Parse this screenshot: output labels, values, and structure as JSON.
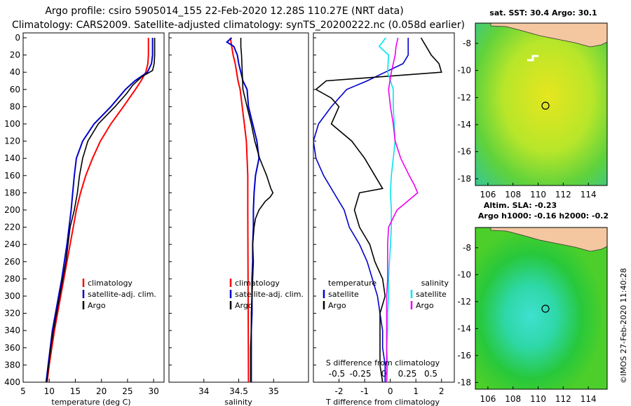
{
  "title_line1": "Argo profile: csiro 5905014_155 22-Feb-2020 12.28S 110.27E (NRT data)",
  "title_line2": "Climatology: CARS2009. Satellite-adjusted climatology: synTS_20200222.nc (0.058d earlier)",
  "credit": "©IMOS 27-Feb-2020 11:40:28",
  "colors": {
    "climatology": "#ff0000",
    "satellite": "#0000cc",
    "argo": "#000000",
    "cyan": "#00e5ee",
    "magenta": "#ee00ee",
    "land": "#f4c7a1"
  },
  "chart_data": [
    {
      "type": "line",
      "id": "temperature",
      "xlabel": "temperature (deg C)",
      "xlim": [
        5,
        32
      ],
      "ylim": [
        0,
        400
      ],
      "xticks": [
        "5",
        "10",
        "15",
        "20",
        "25",
        "30"
      ],
      "yticks": [
        "0",
        "20",
        "40",
        "60",
        "80",
        "100",
        "120",
        "140",
        "160",
        "180",
        "200",
        "220",
        "240",
        "260",
        "280",
        "300",
        "320",
        "340",
        "360",
        "380",
        "400"
      ],
      "legend": [
        "climatology",
        "satellite-adj. clim.",
        "Argo"
      ],
      "series": [
        {
          "name": "climatology",
          "color": "climatology",
          "depth": [
            0,
            10,
            20,
            30,
            40,
            50,
            60,
            80,
            100,
            120,
            140,
            160,
            180,
            200,
            220,
            240,
            260,
            280,
            300,
            320,
            340,
            360,
            380,
            400
          ],
          "values": [
            29.0,
            29.0,
            29.0,
            28.9,
            28.5,
            27.6,
            26.5,
            24.2,
            21.8,
            19.8,
            18.3,
            17.0,
            16.0,
            15.2,
            14.6,
            14.0,
            13.4,
            12.8,
            12.2,
            11.6,
            11.0,
            10.5,
            10.0,
            9.6
          ]
        },
        {
          "name": "satellite-adj. clim.",
          "color": "satellite",
          "depth": [
            0,
            10,
            20,
            30,
            40,
            50,
            60,
            80,
            100,
            120,
            140,
            160,
            180,
            200,
            220,
            240,
            260,
            280,
            300,
            320,
            340,
            360,
            380,
            400
          ],
          "values": [
            29.8,
            29.8,
            29.8,
            29.6,
            28.8,
            26.4,
            24.6,
            21.8,
            18.6,
            16.4,
            15.2,
            14.8,
            14.5,
            14.2,
            13.8,
            13.4,
            12.9,
            12.4,
            11.8,
            11.2,
            10.6,
            10.2,
            9.8,
            9.4
          ]
        },
        {
          "name": "Argo",
          "color": "argo",
          "depth": [
            0,
            10,
            20,
            30,
            38,
            45,
            55,
            65,
            80,
            100,
            120,
            140,
            160,
            180,
            200,
            220,
            240,
            260,
            280,
            300,
            320,
            340,
            360,
            380,
            400
          ],
          "values": [
            30.2,
            30.2,
            30.2,
            30.1,
            29.8,
            27.8,
            26.0,
            24.8,
            22.6,
            19.4,
            17.4,
            16.4,
            15.8,
            15.4,
            14.8,
            14.0,
            13.6,
            13.2,
            12.6,
            12.0,
            11.4,
            10.8,
            10.3,
            9.9,
            9.5
          ]
        }
      ]
    },
    {
      "type": "line",
      "id": "salinity",
      "xlabel": "salinity",
      "xlim": [
        33.5,
        35.5
      ],
      "ylim": [
        0,
        400
      ],
      "xticks": [
        "34",
        "34.5",
        "35"
      ],
      "legend": [
        "climatology",
        "satellite-adj. clim.",
        "Argo"
      ],
      "series": [
        {
          "name": "climatology",
          "color": "climatology",
          "depth": [
            0,
            10,
            20,
            30,
            40,
            50,
            60,
            80,
            100,
            120,
            140,
            160,
            180,
            200,
            400
          ],
          "values": [
            34.38,
            34.4,
            34.42,
            34.45,
            34.47,
            34.49,
            34.52,
            34.55,
            34.58,
            34.61,
            34.62,
            34.63,
            34.63,
            34.63,
            34.64
          ]
        },
        {
          "name": "satellite-adj. clim.",
          "color": "satellite",
          "depth": [
            0,
            5,
            10,
            20,
            30,
            40,
            50,
            60,
            80,
            100,
            120,
            140,
            160,
            180,
            200,
            220,
            240,
            260,
            280,
            300,
            320,
            340,
            360,
            380,
            400
          ],
          "values": [
            34.4,
            34.33,
            34.43,
            34.48,
            34.5,
            34.53,
            34.56,
            34.62,
            34.64,
            34.7,
            34.76,
            34.79,
            34.74,
            34.72,
            34.71,
            34.71,
            34.7,
            34.7,
            34.69,
            34.69,
            34.69,
            34.68,
            34.68,
            34.68,
            34.68
          ]
        },
        {
          "name": "Argo",
          "color": "argo",
          "depth": [
            0,
            10,
            20,
            40,
            60,
            80,
            100,
            120,
            140,
            150,
            160,
            170,
            175,
            180,
            185,
            190,
            200,
            210,
            220,
            240,
            260,
            280,
            300,
            320,
            340,
            360,
            380,
            400
          ],
          "values": [
            34.53,
            34.53,
            34.54,
            34.55,
            34.56,
            34.62,
            34.68,
            34.73,
            34.8,
            34.85,
            34.9,
            34.94,
            34.96,
            34.99,
            34.95,
            34.88,
            34.79,
            34.74,
            34.72,
            34.7,
            34.71,
            34.7,
            34.69,
            34.68,
            34.68,
            34.67,
            34.67,
            34.67
          ]
        }
      ]
    },
    {
      "type": "line",
      "id": "difference",
      "xlabel": "T difference from climatology",
      "xlabel_top": "S difference from climatology",
      "xlim": [
        -3,
        2.5
      ],
      "xlim_s": [
        -0.75,
        0.75
      ],
      "ylim": [
        0,
        400
      ],
      "xticks": [
        "-2",
        "-1",
        "0",
        "1",
        "2"
      ],
      "xticks_s": [
        "-0.5",
        "-0.25",
        "0",
        "0.25",
        "0.5"
      ],
      "legend_t": {
        "title": "temperature",
        "items": [
          "satellite",
          "Argo"
        ]
      },
      "legend_s": {
        "title": "salinity",
        "items": [
          "satellite",
          "Argo"
        ]
      },
      "series": [
        {
          "name": "temperature satellite",
          "axis": "T",
          "color": "satellite",
          "depth": [
            0,
            20,
            30,
            40,
            50,
            60,
            80,
            100,
            120,
            140,
            160,
            180,
            200,
            220,
            240,
            260,
            280,
            300,
            320,
            340,
            360,
            380,
            400
          ],
          "values": [
            0.7,
            0.7,
            0.5,
            -0.2,
            -0.9,
            -1.7,
            -2.3,
            -2.8,
            -3.0,
            -2.9,
            -2.6,
            -2.2,
            -1.8,
            -1.6,
            -1.2,
            -0.9,
            -0.7,
            -0.5,
            -0.4,
            -0.3,
            -0.3,
            -0.2,
            -0.2
          ]
        },
        {
          "name": "temperature Argo",
          "axis": "T",
          "color": "argo",
          "depth": [
            0,
            10,
            20,
            30,
            40,
            50,
            60,
            70,
            80,
            100,
            120,
            140,
            160,
            175,
            180,
            200,
            220,
            240,
            260,
            280,
            300,
            320,
            340,
            360,
            380,
            400
          ],
          "values": [
            1.2,
            1.4,
            1.6,
            1.9,
            2.0,
            -2.5,
            -2.9,
            -2.3,
            -2.0,
            -2.3,
            -1.5,
            -1.0,
            -0.6,
            -0.3,
            -1.2,
            -1.4,
            -1.2,
            -0.8,
            -0.6,
            -0.3,
            -0.2,
            -0.4,
            -0.4,
            -0.4,
            -0.4,
            -0.3
          ]
        },
        {
          "name": "salinity satellite",
          "axis": "S",
          "color": "cyan",
          "depth": [
            0,
            10,
            20,
            40,
            60,
            80,
            100,
            120,
            140,
            160,
            180,
            200,
            220,
            240,
            260,
            280,
            300,
            320,
            340,
            360,
            380,
            400
          ],
          "values": [
            0.02,
            -0.05,
            0.05,
            0.04,
            0.1,
            0.1,
            0.11,
            0.12,
            0.1,
            0.08,
            0.07,
            0.08,
            0.08,
            0.07,
            0.06,
            0.05,
            0.05,
            0.04,
            0.04,
            0.03,
            0.04,
            0.03
          ]
        },
        {
          "name": "salinity Argo",
          "axis": "S",
          "color": "magenta",
          "depth": [
            0,
            10,
            20,
            40,
            60,
            80,
            100,
            120,
            140,
            160,
            170,
            180,
            190,
            200,
            220,
            240,
            260,
            280,
            300,
            320,
            340,
            360,
            380,
            400
          ],
          "values": [
            0.15,
            0.13,
            0.12,
            0.08,
            0.05,
            0.07,
            0.1,
            0.12,
            0.18,
            0.27,
            0.32,
            0.36,
            0.25,
            0.14,
            0.05,
            0.04,
            0.04,
            0.04,
            0.03,
            0.03,
            0.03,
            0.03,
            0.03,
            0.03
          ]
        }
      ]
    },
    {
      "type": "heatmap",
      "id": "sst-map",
      "title": "sat. SST: 30.4 Argo: 30.1",
      "xlim": [
        105,
        115.5
      ],
      "ylim": [
        -18.5,
        -6.5
      ],
      "xticks": [
        "106",
        "108",
        "110",
        "112",
        "114"
      ],
      "yticks": [
        "-8",
        "-10",
        "-12",
        "-14",
        "-16",
        "-18"
      ],
      "marker": {
        "lon": 110.27,
        "lat": -12.28
      }
    },
    {
      "type": "heatmap",
      "id": "sla-map",
      "title": "Altim. SLA: -0.23",
      "subtitle": "Argo h1000: -0.16 h2000: -0.2",
      "xlim": [
        105,
        115.5
      ],
      "ylim": [
        -18.5,
        -6.5
      ],
      "xticks": [
        "106",
        "108",
        "110",
        "112",
        "114"
      ],
      "yticks": [
        "-8",
        "-10",
        "-12",
        "-14",
        "-16",
        "-18"
      ],
      "marker": {
        "lon": 110.27,
        "lat": -12.28
      }
    }
  ]
}
